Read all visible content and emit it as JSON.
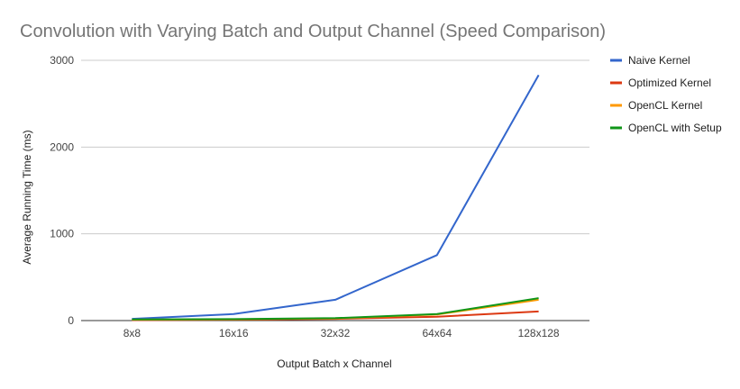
{
  "chart_data": {
    "type": "line",
    "title": "Convolution with Varying Batch and Output Channel (Speed Comparison)",
    "xlabel": "Output Batch x Channel",
    "ylabel": "Average Running Time (ms)",
    "categories": [
      "8x8",
      "16x16",
      "32x32",
      "64x64",
      "128x128"
    ],
    "ylim": [
      0,
      3000
    ],
    "yticks": [
      0,
      1000,
      2000,
      3000
    ],
    "grid": true,
    "legend_position": "right",
    "series": [
      {
        "name": "Naive Kernel",
        "color": "#3366cc",
        "values": [
          20,
          75,
          240,
          755,
          2830
        ]
      },
      {
        "name": "Optimized Kernel",
        "color": "#dc3912",
        "values": [
          5,
          10,
          20,
          45,
          105
        ]
      },
      {
        "name": "OpenCL Kernel",
        "color": "#ff9900",
        "values": [
          10,
          15,
          25,
          70,
          240
        ]
      },
      {
        "name": "OpenCL with Setup",
        "color": "#109618",
        "values": [
          12,
          17,
          28,
          75,
          258
        ]
      }
    ]
  }
}
